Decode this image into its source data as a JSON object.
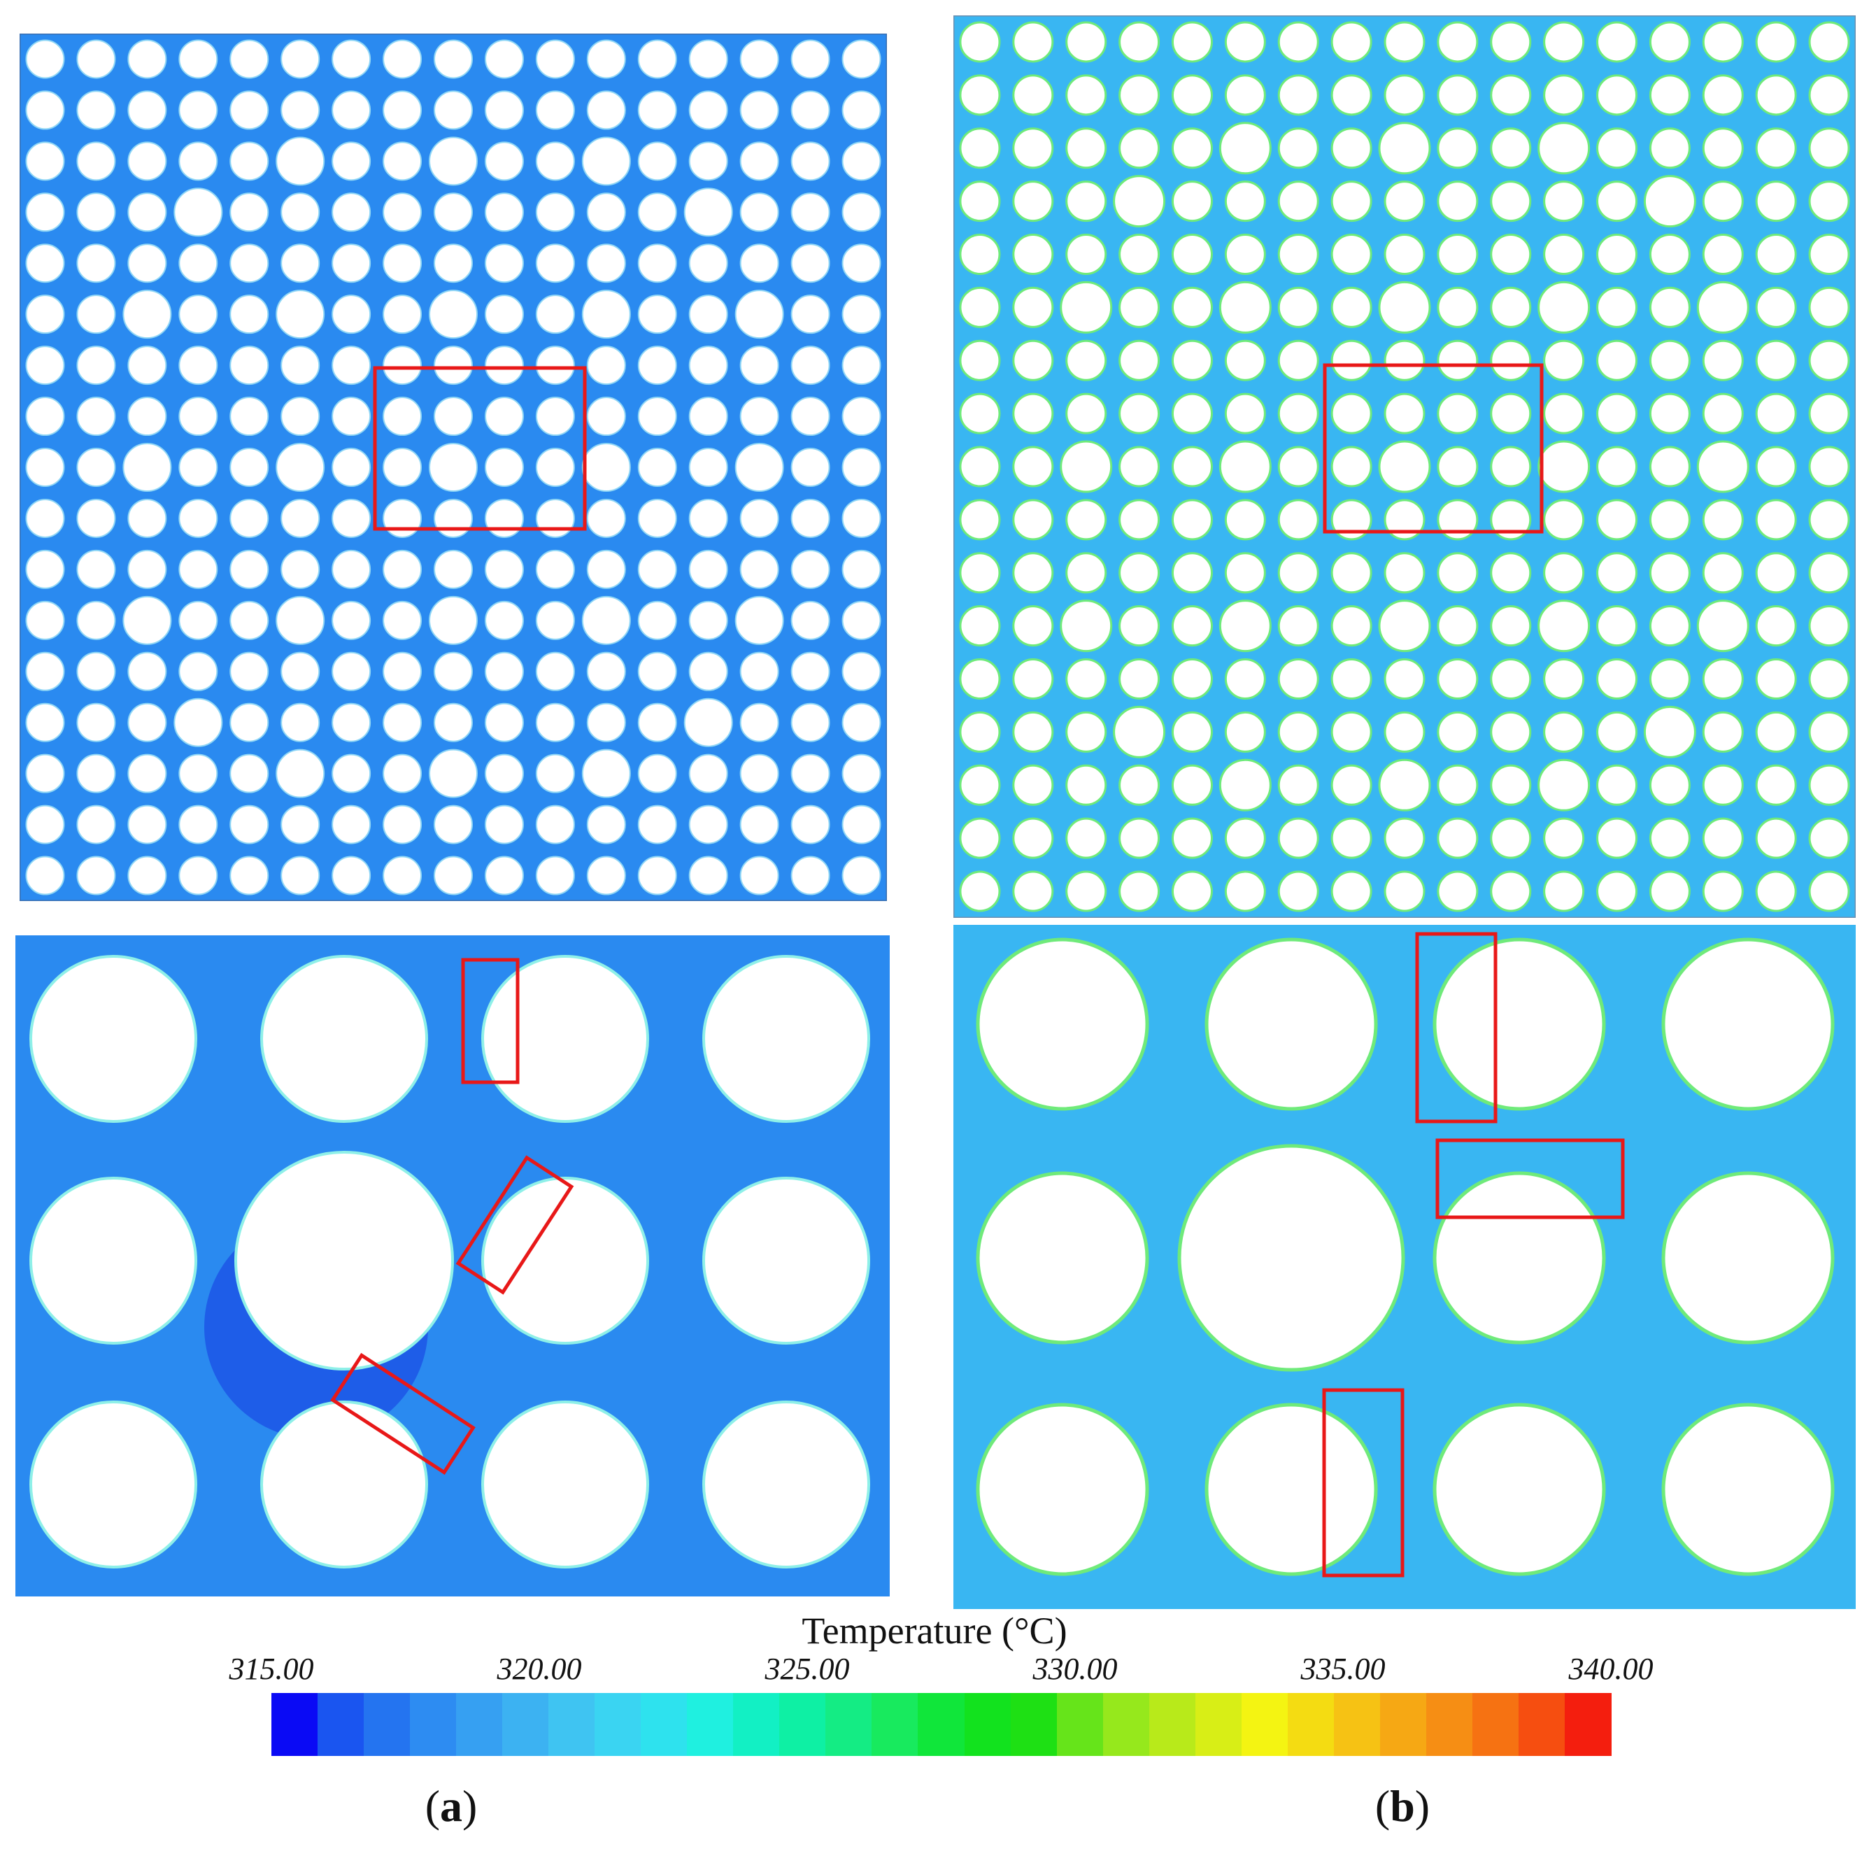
{
  "panels": {
    "a": {
      "label_open": "(",
      "label_letter": "a",
      "label_close": ")",
      "background_color": "#2a8af0",
      "cold_color": "#1c55e6"
    },
    "b": {
      "label_open": "(",
      "label_letter": "b",
      "label_close": ")",
      "background_color": "#39b6f2",
      "rim_color": "#6fea7a"
    }
  },
  "colorbar": {
    "title": "Temperature (°C)",
    "ticks": [
      "315.00",
      "320.00",
      "325.00",
      "330.00",
      "335.00",
      "340.00"
    ],
    "colors": [
      "#0a0af5",
      "#1a55f0",
      "#2474f0",
      "#2d8cf2",
      "#36a0f2",
      "#3cb2f2",
      "#3fc4f2",
      "#3ad4f2",
      "#2ee2ee",
      "#1ff0e0",
      "#12f0c4",
      "#0ef0a4",
      "#14ec84",
      "#18ea5e",
      "#10e63a",
      "#12e21e",
      "#1ee014",
      "#66e41a",
      "#96e81c",
      "#b8ea1a",
      "#d8ee16",
      "#f4f412",
      "#f4dc12",
      "#f6c214",
      "#f6a814",
      "#f68e14",
      "#f67212",
      "#f64e10",
      "#f41e0e"
    ]
  },
  "highlight_color": "#e81818"
}
